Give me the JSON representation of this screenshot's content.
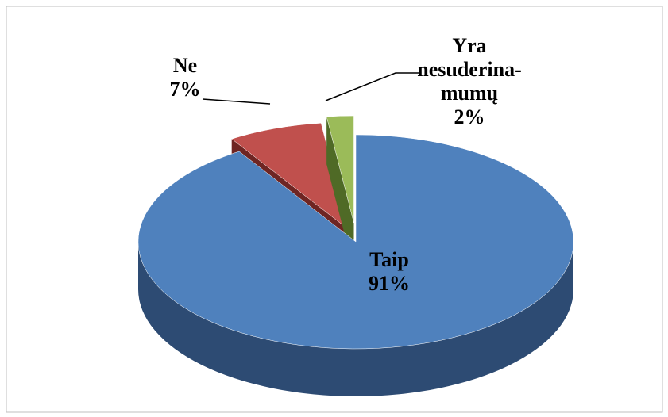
{
  "chart_data": {
    "type": "pie3d",
    "categories": [
      "Taip",
      "Ne",
      "Yra\nnesuderina-\nmumų"
    ],
    "values": [
      91,
      7,
      2
    ],
    "value_labels": [
      "91%",
      "7%",
      "2%"
    ],
    "colors": [
      "#4f81bd",
      "#c0504d",
      "#9bbb59"
    ],
    "side_colors": [
      "#2d4b73",
      "#6e2523",
      "#4f6a26"
    ]
  }
}
